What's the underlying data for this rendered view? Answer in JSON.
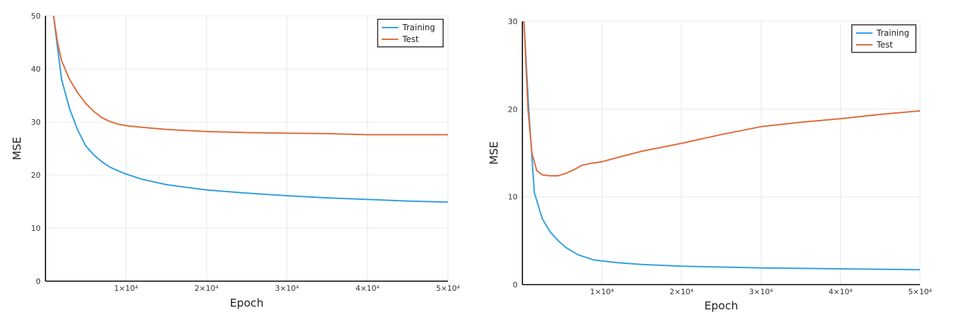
{
  "chart_data": [
    {
      "type": "line",
      "xlabel": "Epoch",
      "ylabel": "MSE",
      "xlim": [
        0,
        50000
      ],
      "ylim": [
        0,
        50
      ],
      "xticks": [
        10000,
        20000,
        30000,
        40000,
        50000
      ],
      "xtick_labels": [
        "1×10⁴",
        "2×10⁴",
        "3×10⁴",
        "4×10⁴",
        "5×10⁴"
      ],
      "yticks": [
        0,
        10,
        20,
        30,
        40,
        50
      ],
      "ytick_labels": [
        "0",
        "10",
        "20",
        "30",
        "40",
        "50"
      ],
      "grid": true,
      "legend_position": "top-right",
      "series": [
        {
          "name": "Training",
          "color": "#2f9ee0",
          "x": [
            1000,
            1500,
            2000,
            3000,
            4000,
            5000,
            6000,
            7000,
            8000,
            9000,
            10000,
            12000,
            15000,
            20000,
            25000,
            30000,
            35000,
            40000,
            45000,
            50000
          ],
          "y": [
            50,
            44,
            38,
            32.5,
            28.5,
            25.5,
            23.8,
            22.5,
            21.5,
            20.8,
            20.2,
            19.2,
            18.2,
            17.2,
            16.6,
            16.1,
            15.7,
            15.4,
            15.1,
            14.9
          ]
        },
        {
          "name": "Test",
          "color": "#e06a3b",
          "x": [
            1000,
            1500,
            2000,
            3000,
            4000,
            5000,
            6000,
            7000,
            8000,
            9000,
            10000,
            12000,
            15000,
            20000,
            25000,
            30000,
            35000,
            40000,
            45000,
            50000
          ],
          "y": [
            50,
            45,
            41.5,
            38,
            35.5,
            33.5,
            32,
            30.8,
            30.1,
            29.6,
            29.3,
            29,
            28.6,
            28.2,
            28,
            27.9,
            27.8,
            27.6,
            27.6,
            27.6
          ]
        }
      ]
    },
    {
      "type": "line",
      "xlabel": "Epoch",
      "ylabel": "MSE",
      "xlim": [
        0,
        50000
      ],
      "ylim": [
        0,
        30
      ],
      "xticks": [
        10000,
        20000,
        30000,
        40000,
        50000
      ],
      "xtick_labels": [
        "1×10⁴",
        "2×10⁴",
        "3×10⁴",
        "4×10⁴",
        "5×10⁴"
      ],
      "yticks": [
        0,
        10,
        20,
        30
      ],
      "ytick_labels": [
        "0",
        "10",
        "20",
        "30"
      ],
      "grid": true,
      "legend_position": "top-right",
      "series": [
        {
          "name": "Training",
          "color": "#2f9ee0",
          "x": [
            200,
            800,
            1500,
            2500,
            3500,
            4500,
            5500,
            7000,
            9000,
            12000,
            15000,
            20000,
            25000,
            30000,
            35000,
            40000,
            45000,
            50000
          ],
          "y": [
            30,
            20,
            10.5,
            7.5,
            6,
            5,
            4.2,
            3.4,
            2.8,
            2.5,
            2.3,
            2.1,
            2.0,
            1.9,
            1.85,
            1.8,
            1.75,
            1.7
          ]
        },
        {
          "name": "Test",
          "color": "#e06a3b",
          "x": [
            200,
            700,
            1200,
            1800,
            2500,
            3500,
            4500,
            5500,
            6500,
            7500,
            8500,
            10000,
            12000,
            15000,
            20000,
            25000,
            30000,
            35000,
            40000,
            45000,
            50000
          ],
          "y": [
            30,
            20,
            15,
            13,
            12.5,
            12.4,
            12.4,
            12.7,
            13.1,
            13.6,
            13.8,
            14.0,
            14.5,
            15.2,
            16.1,
            17.1,
            18.0,
            18.5,
            18.9,
            19.4,
            19.8
          ]
        }
      ]
    }
  ]
}
